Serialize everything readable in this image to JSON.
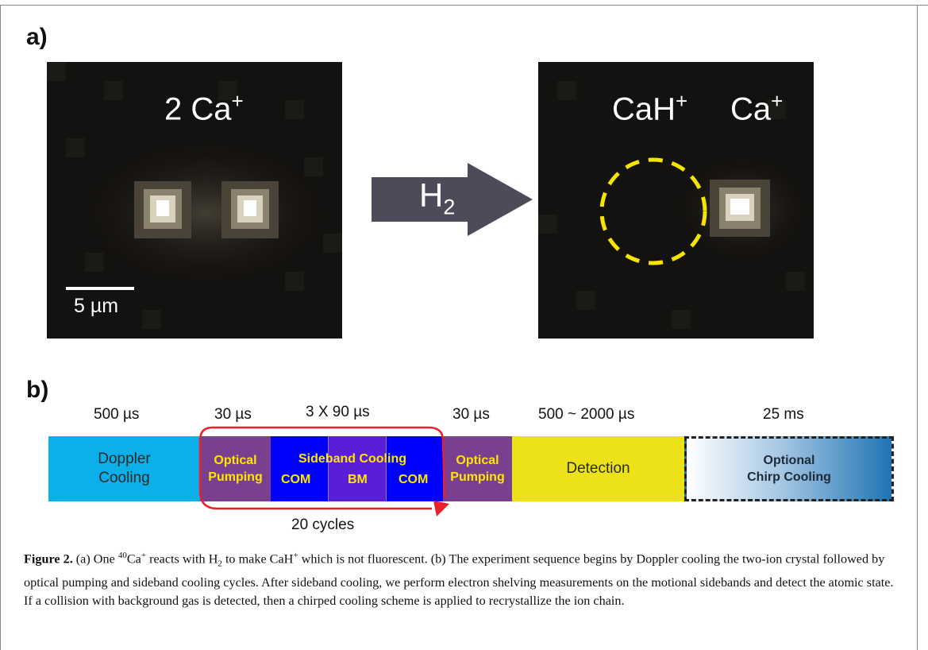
{
  "figure": {
    "panel_a_label": "a)",
    "panel_b_label": "b)",
    "left_image": {
      "ion_label": "2 Ca",
      "ion_charge": "+",
      "scale_bar_text": "5 µm"
    },
    "arrow_label": "H",
    "arrow_subscript": "2",
    "right_image": {
      "label_1": "CaH",
      "label_1_charge": "+",
      "label_2": "Ca",
      "label_2_charge": "+",
      "dashed_circle_color": "#f5e400"
    },
    "timeline": {
      "durations": [
        "500 µs",
        "30 µs",
        "3 X 90 µs",
        "30 µs",
        "500 ~ 2000 µs",
        "25 ms"
      ],
      "doppler": {
        "line1": "Doppler",
        "line2": "Cooling",
        "color": "#0bb0ea"
      },
      "optical_pumping_1": {
        "line1": "Optical",
        "line2": "Pumping",
        "color": "#7b3f8f"
      },
      "sideband": {
        "title": "Sideband Cooling",
        "com_1": "COM",
        "bm": "BM",
        "com_2": "COM",
        "color_com": "#0000ff",
        "color_bm": "#5a1ed8"
      },
      "optical_pumping_2": {
        "line1": "Optical",
        "line2": "Pumping",
        "color": "#7b3f8f"
      },
      "detection": {
        "label": "Detection",
        "color": "#ede219"
      },
      "chirp": {
        "line1": "Optional",
        "line2": "Chirp Cooling",
        "color": "#1f74b4"
      },
      "cycles_label": "20 cycles",
      "loop_color": "#e8212b"
    }
  },
  "caption": {
    "prefix": "Figure 2.",
    "t1": " (a) One ",
    "iso": "40",
    "ca": "Ca",
    "plus_1": "+",
    "t2": " reacts with H",
    "h_sub": "2",
    "t3": " to make CaH",
    "plus_2": "+",
    "t4": " which is not fluorescent. (b) The experiment sequence begins by Doppler cooling the two-ion crystal followed by optical pumping and sideband cooling cycles. After sideband cooling, we perform electron shelving measurements on the motional sidebands and detect the atomic state. If a collision with background gas is detected, then a chirped cooling scheme is applied to recrystallize the ion chain."
  }
}
